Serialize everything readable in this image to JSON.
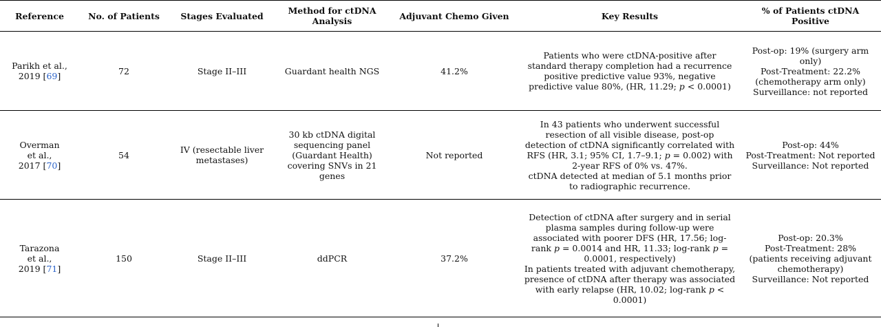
{
  "headers": {
    "reference": "Reference",
    "patients": "No. of Patients",
    "stages": "Stages Evaluated",
    "method": "Method for ctDNA Analysis",
    "chemo": "Adjuvant Chemo Given",
    "results": "Key Results",
    "positive": "% of Patients ctDNA Positive"
  },
  "rows": [
    {
      "ref_name": "Parikh et al.,",
      "ref_year": "2019 [",
      "ref_num": "69",
      "ref_close": "]",
      "patients": "72",
      "stages": "Stage II–III",
      "method": "Guardant health NGS",
      "chemo": "41.2%",
      "results_a": "Patients who were ctDNA-positive after standard therapy completion had a recurrence positive predictive value 93%, negative predictive value 80%, (HR, 11.29; ",
      "results_p": "p",
      "results_b": " < 0.0001)",
      "pos_1": "Post-op: 19% (surgery arm only)",
      "pos_2": "Post-Treatment: 22.2% (chemotherapy arm only)",
      "pos_3": "Surveillance: not reported"
    },
    {
      "ref_name1": "Overman",
      "ref_name2": "et al.,",
      "ref_year": "2017 [",
      "ref_num": "70",
      "ref_close": "]",
      "patients": "54",
      "stages": "IV (resectable liver metastases)",
      "method": "30 kb ctDNA digital sequencing panel (Guardant Health) covering SNVs in 21 genes",
      "chemo": "Not reported",
      "results_a": "In 43 patients who underwent successful resection of all visible disease, post-op detection of ctDNA significantly correlated with RFS (HR, 3.1; 95% CI, 1.7–9.1; ",
      "results_p": "p",
      "results_b": " = 0.002) with 2-year RFS of 0% vs. 47%.",
      "results_c": "ctDNA detected at median of 5.1 months prior to radiographic recurrence.",
      "pos_1": "Post-op: 44%",
      "pos_2": "Post-Treatment: Not reported",
      "pos_3": "Surveillance: Not reported"
    },
    {
      "ref_name1": "Tarazona",
      "ref_name2": "et al.,",
      "ref_year": "2019 [",
      "ref_num": "71",
      "ref_close": "]",
      "patients": "150",
      "stages": "Stage II–III",
      "method": "ddPCR",
      "chemo": "37.2%",
      "results_a": "Detection of ctDNA after surgery and in serial plasma samples during follow-up were associated with poorer DFS (HR, 17.56; log-rank ",
      "results_p1": "p",
      "results_b": " = 0.0014 and HR, 11.33; log-rank ",
      "results_p2": "p",
      "results_c": " = 0.0001, respectively)",
      "results_d": "In patients treated with adjuvant chemotherapy, presence of ctDNA after therapy was associated with early relapse (HR, 10.02; log-rank ",
      "results_p3": "p",
      "results_e": " < 0.0001)",
      "pos_1": "Post-op: 20.3%",
      "pos_2": "Post-Treatment: 28% (patients receiving adjuvant chemotherapy)",
      "pos_3": "Surveillance: Not reported"
    }
  ]
}
